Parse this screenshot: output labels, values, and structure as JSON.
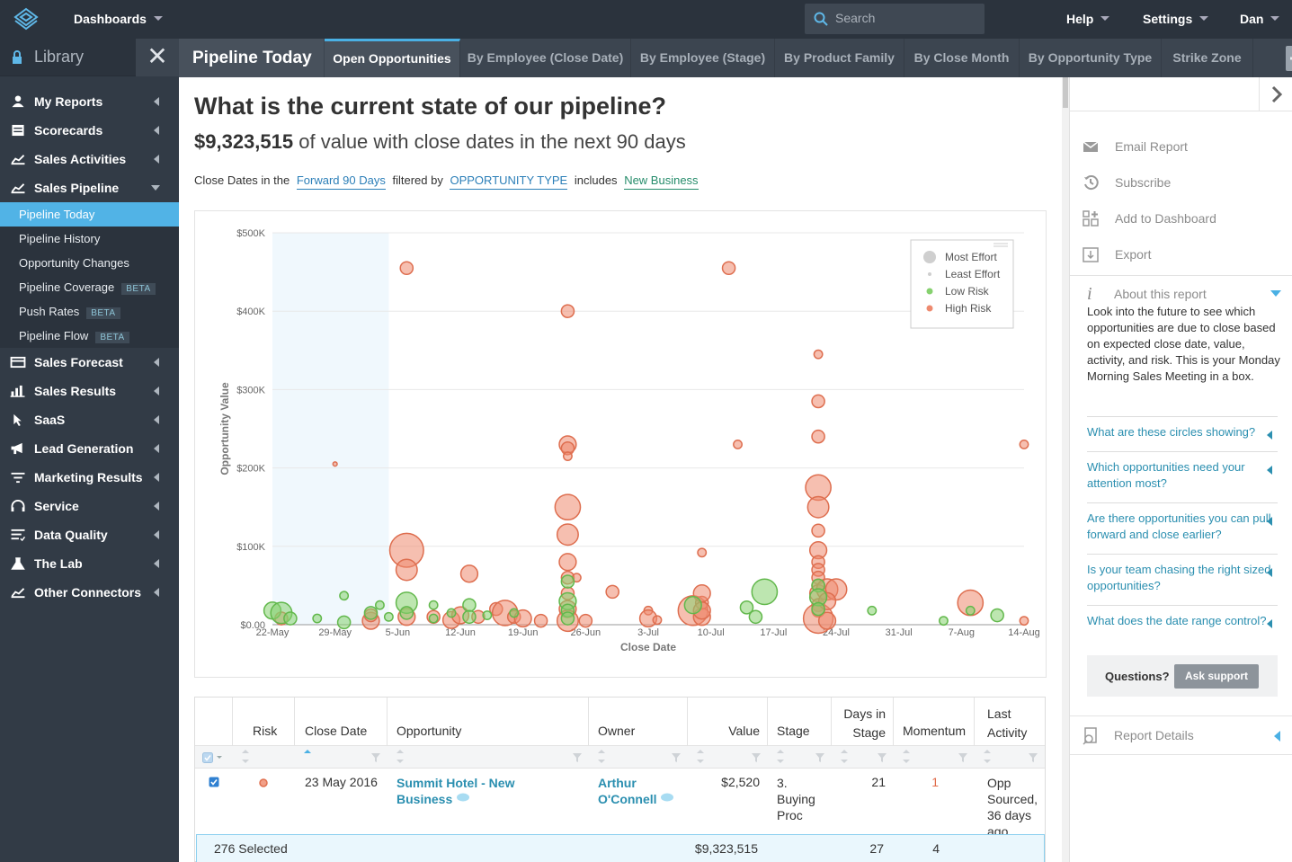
{
  "topbar": {
    "dashboards": "Dashboards",
    "search_placeholder": "Search",
    "help": "Help",
    "settings": "Settings",
    "user": "Dan"
  },
  "sidebar": {
    "library": "Library",
    "items": [
      {
        "label": "My Reports",
        "icon": "person-icon"
      },
      {
        "label": "Scorecards",
        "icon": "scorecard-icon"
      },
      {
        "label": "Sales Activities",
        "icon": "activity-icon"
      },
      {
        "label": "Sales Pipeline",
        "icon": "pipeline-icon"
      },
      {
        "label": "Sales Forecast",
        "icon": "forecast-icon"
      },
      {
        "label": "Sales Results",
        "icon": "bar-chart-icon"
      },
      {
        "label": "SaaS",
        "icon": "cursor-icon"
      },
      {
        "label": "Lead Generation",
        "icon": "megaphone-icon"
      },
      {
        "label": "Marketing Results",
        "icon": "filter-icon"
      },
      {
        "label": "Service",
        "icon": "headset-icon"
      },
      {
        "label": "Data Quality",
        "icon": "list-icon"
      },
      {
        "label": "The Lab",
        "icon": "flask-icon"
      },
      {
        "label": "Other Connectors",
        "icon": "line-chart-icon"
      }
    ],
    "subitems": [
      {
        "label": "Pipeline Today",
        "badge": ""
      },
      {
        "label": "Pipeline History",
        "badge": ""
      },
      {
        "label": "Opportunity Changes",
        "badge": ""
      },
      {
        "label": "Pipeline Coverage",
        "badge": "BETA"
      },
      {
        "label": "Push Rates",
        "badge": "BETA"
      },
      {
        "label": "Pipeline Flow",
        "badge": "BETA"
      }
    ]
  },
  "tabs": {
    "title": "Pipeline Today",
    "items": [
      "Open Opportunities",
      "By Employee (Close Date)",
      "By Employee (Stage)",
      "By Product Family",
      "By Close Month",
      "By Opportunity Type",
      "Strike Zone"
    ]
  },
  "report": {
    "question": "What is the current state of our pipeline?",
    "value": "$9,323,515",
    "value_suffix": "of value with close dates in the next 90 days",
    "filter_prefix": "Close Dates in the",
    "filter_range": "Forward 90 Days",
    "filter_by": "filtered by",
    "filter_field": "OPPORTUNITY TYPE",
    "filter_op": "includes",
    "filter_value": "New Business"
  },
  "chart_data": {
    "type": "scatter",
    "xlabel": "Close Date",
    "ylabel": "Opportunity Value",
    "x_ticks": [
      "22-May",
      "29-May",
      "5-Jun",
      "12-Jun",
      "19-Jun",
      "26-Jun",
      "3-Jul",
      "10-Jul",
      "17-Jul",
      "24-Jul",
      "31-Jul",
      "7-Aug",
      "14-Aug"
    ],
    "y_ticks": [
      "$0.00",
      "$100K",
      "$200K",
      "$300K",
      "$400K",
      "$500K"
    ],
    "ylim": [
      0,
      500000
    ],
    "x_range_days": [
      0,
      84
    ],
    "highlight_range_days": [
      0,
      13
    ],
    "legend": [
      "Most Effort",
      "Least Effort",
      "Low Risk",
      "High Risk"
    ],
    "legend_position": "top-right",
    "colors": {
      "high_risk": "#ee8a6f",
      "low_risk": "#86d16f",
      "legend_effort": "#cfcfcf"
    },
    "series": [
      {
        "name": "High Risk",
        "points": [
          [
            1,
            8000,
            3
          ],
          [
            7,
            205000,
            1
          ],
          [
            11,
            5000,
            4
          ],
          [
            11,
            12000,
            3
          ],
          [
            15,
            455000,
            3
          ],
          [
            15,
            95000,
            8
          ],
          [
            15,
            70000,
            5
          ],
          [
            15,
            10000,
            4
          ],
          [
            18,
            10000,
            3
          ],
          [
            20,
            6000,
            4
          ],
          [
            21,
            12000,
            4
          ],
          [
            22,
            65000,
            4
          ],
          [
            23,
            10000,
            3
          ],
          [
            25,
            20000,
            3
          ],
          [
            26,
            15000,
            6
          ],
          [
            27,
            10000,
            3
          ],
          [
            28,
            8000,
            4
          ],
          [
            30,
            5000,
            3
          ],
          [
            33,
            400000,
            3
          ],
          [
            33,
            230000,
            4
          ],
          [
            33,
            225000,
            3
          ],
          [
            33,
            215000,
            2
          ],
          [
            33,
            150000,
            6
          ],
          [
            33,
            115000,
            5
          ],
          [
            33,
            80000,
            4
          ],
          [
            33,
            60000,
            3
          ],
          [
            33,
            40000,
            3
          ],
          [
            34,
            60000,
            2
          ],
          [
            33,
            20000,
            4
          ],
          [
            33,
            5000,
            5
          ],
          [
            35,
            5000,
            3
          ],
          [
            38,
            42000,
            3
          ],
          [
            42,
            18000,
            2
          ],
          [
            42,
            8000,
            4
          ],
          [
            43,
            6000,
            2
          ],
          [
            47,
            18000,
            7
          ],
          [
            48,
            10000,
            4
          ],
          [
            48,
            28000,
            3
          ],
          [
            48,
            40000,
            4
          ],
          [
            48,
            18000,
            4
          ],
          [
            48,
            92000,
            2
          ],
          [
            51,
            455000,
            3
          ],
          [
            52,
            230000,
            2
          ],
          [
            61,
            345000,
            2
          ],
          [
            61,
            285000,
            3
          ],
          [
            61,
            240000,
            3
          ],
          [
            61,
            175000,
            6
          ],
          [
            61,
            150000,
            5
          ],
          [
            61,
            120000,
            3
          ],
          [
            61,
            95000,
            4
          ],
          [
            61,
            80000,
            3
          ],
          [
            61,
            70000,
            3
          ],
          [
            61,
            60000,
            3
          ],
          [
            61,
            50000,
            3
          ],
          [
            61,
            40000,
            4
          ],
          [
            62,
            45000,
            5
          ],
          [
            61,
            25000,
            3
          ],
          [
            61,
            18000,
            3
          ],
          [
            61,
            8000,
            7
          ],
          [
            62,
            5000,
            4
          ],
          [
            63,
            45000,
            5
          ],
          [
            62,
            30000,
            4
          ],
          [
            78,
            28000,
            6
          ],
          [
            84,
            230000,
            2
          ],
          [
            84,
            5000,
            2
          ]
        ]
      },
      {
        "name": "Low Risk",
        "points": [
          [
            0,
            18000,
            4
          ],
          [
            1,
            15000,
            5
          ],
          [
            2,
            8000,
            3
          ],
          [
            5,
            8000,
            2
          ],
          [
            8,
            37000,
            2
          ],
          [
            8,
            3000,
            3
          ],
          [
            11,
            15000,
            3
          ],
          [
            12,
            25000,
            2
          ],
          [
            13,
            10000,
            2
          ],
          [
            15,
            28000,
            5
          ],
          [
            15,
            15000,
            3
          ],
          [
            18,
            25000,
            2
          ],
          [
            18,
            8000,
            2
          ],
          [
            20,
            15000,
            2
          ],
          [
            22,
            25000,
            3
          ],
          [
            22,
            10000,
            3
          ],
          [
            24,
            12000,
            2
          ],
          [
            27,
            15000,
            2
          ],
          [
            33,
            55000,
            3
          ],
          [
            33,
            30000,
            4
          ],
          [
            33,
            18000,
            3
          ],
          [
            33,
            8000,
            3
          ],
          [
            47,
            25000,
            4
          ],
          [
            55,
            42000,
            6
          ],
          [
            54,
            10000,
            3
          ],
          [
            53,
            22000,
            3
          ],
          [
            61,
            50000,
            3
          ],
          [
            61,
            35000,
            4
          ],
          [
            61,
            20000,
            3
          ],
          [
            67,
            18000,
            2
          ],
          [
            75,
            5000,
            2
          ],
          [
            78,
            18000,
            2
          ],
          [
            81,
            12000,
            3
          ]
        ]
      }
    ]
  },
  "table": {
    "headers": [
      "Risk",
      "Close Date",
      "Opportunity",
      "Owner",
      "Value",
      "Stage",
      "Days in Stage",
      "Momentum",
      "Last Activity"
    ],
    "row": {
      "close_date": "23 May 2016",
      "opportunity": "Summit Hotel - New Business",
      "owner": "Arthur O'Connell",
      "value": "$2,520",
      "stage": "3. Buying Proc",
      "days_in_stage": "21",
      "momentum": "1",
      "last_activity": "Opp Sourced, 36 days ago"
    },
    "footer": {
      "selected": "276 Selected",
      "value": "$9,323,515",
      "days": "27",
      "momentum": "4"
    }
  },
  "right_panel": {
    "actions": [
      {
        "label": "Email Report",
        "icon": "envelope-icon"
      },
      {
        "label": "Subscribe",
        "icon": "history-icon"
      },
      {
        "label": "Add to Dashboard",
        "icon": "add-dashboard-icon"
      },
      {
        "label": "Export",
        "icon": "export-icon"
      }
    ],
    "about_title": "About this report",
    "about_text": "Look into the future to see which opportunities are due to close based on expected close date, value, activity, and risk. This is your Monday Morning Sales Meeting in a box.",
    "faqs": [
      "What are these circles showing?",
      "Which opportunities need your attention most?",
      "Are there opportunities you can pull forward and close earlier?",
      "Is your team chasing the right sized opportunities?",
      "What does the date range control?"
    ],
    "questions": "Questions?",
    "ask_support": "Ask support",
    "report_details": "Report Details"
  }
}
